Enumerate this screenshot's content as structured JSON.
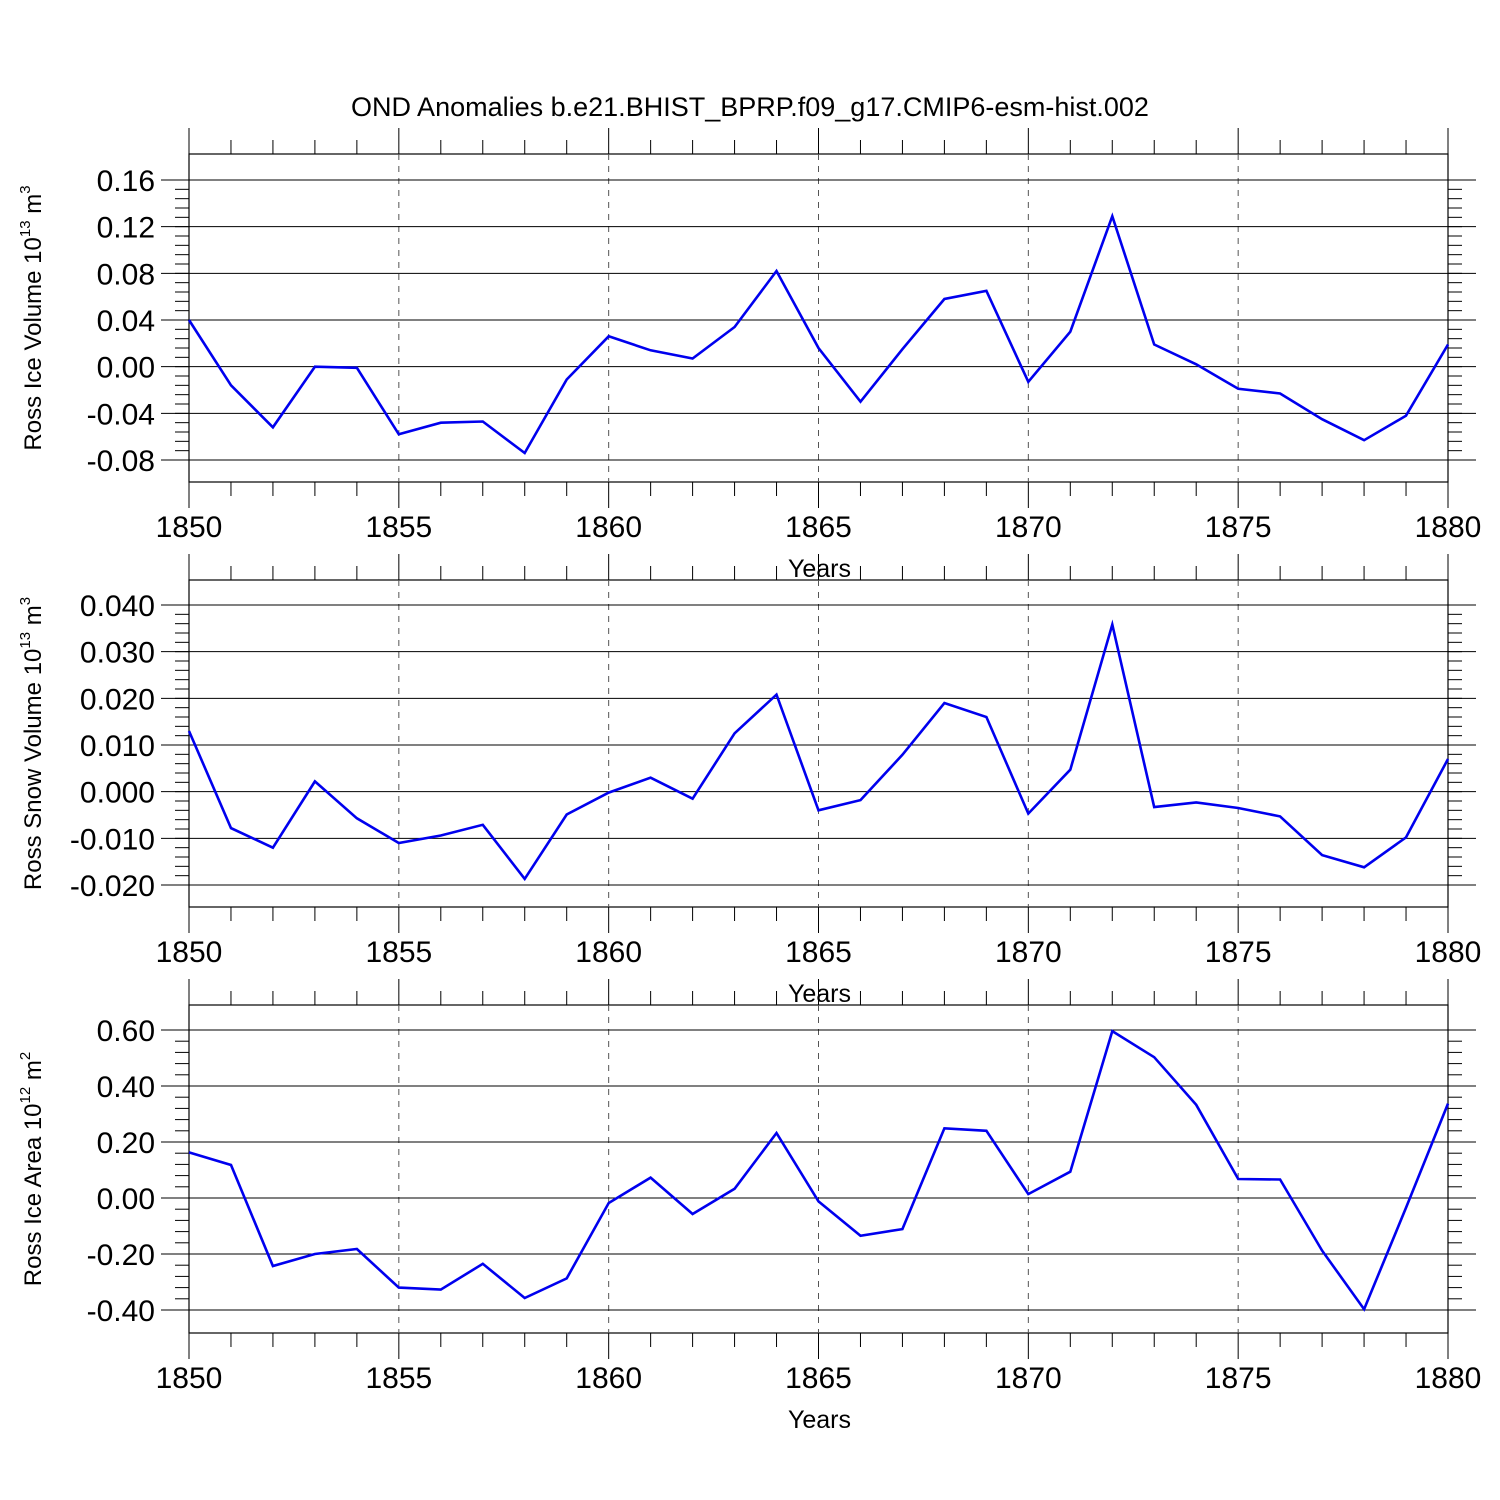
{
  "title": "OND Anomalies b.e21.BHIST_BPRP.f09_g17.CMIP6-esm-hist.002",
  "colors": {
    "line": "#0000ee",
    "axis": "#000000",
    "grid": "#555555"
  },
  "chart_data": [
    {
      "type": "line",
      "ylabel": "Ross Ice Volume 10",
      "ylabel_exp": "13",
      "ylabel_unit": " m",
      "ylabel_unit_exp": "3",
      "xlabel": "Years",
      "xlim": [
        1850,
        1880
      ],
      "ylim": [
        -0.08,
        0.16
      ],
      "yticks": [
        "0.16",
        "0.12",
        "0.08",
        "0.04",
        "0.00",
        "-0.04",
        "-0.08"
      ],
      "xticks": [
        "1850",
        "1855",
        "1860",
        "1865",
        "1870",
        "1875",
        "1880"
      ],
      "x": [
        1850,
        1851,
        1852,
        1853,
        1854,
        1855,
        1856,
        1857,
        1858,
        1859,
        1860,
        1861,
        1862,
        1863,
        1864,
        1865,
        1866,
        1867,
        1868,
        1869,
        1870,
        1871,
        1872,
        1873,
        1874,
        1875,
        1876,
        1877,
        1878,
        1879,
        1880
      ],
      "values": [
        0.04,
        -0.016,
        -0.052,
        0.0,
        -0.001,
        -0.058,
        -0.048,
        -0.047,
        -0.074,
        -0.011,
        0.026,
        0.014,
        0.007,
        0.034,
        0.082,
        0.016,
        -0.03,
        0.015,
        0.058,
        0.065,
        -0.013,
        0.03,
        0.129,
        0.019,
        0.002,
        -0.019,
        -0.023,
        -0.045,
        -0.063,
        -0.042,
        0.019
      ]
    },
    {
      "type": "line",
      "ylabel": "Ross Snow Volume 10",
      "ylabel_exp": "13",
      "ylabel_unit": " m",
      "ylabel_unit_exp": "3",
      "xlabel": "Years",
      "xlim": [
        1850,
        1880
      ],
      "ylim": [
        -0.02,
        0.04
      ],
      "yticks": [
        "0.040",
        "0.030",
        "0.020",
        "0.010",
        "0.000",
        "-0.010",
        "-0.020"
      ],
      "xticks": [
        "1850",
        "1855",
        "1860",
        "1865",
        "1870",
        "1875",
        "1880"
      ],
      "x": [
        1850,
        1851,
        1852,
        1853,
        1854,
        1855,
        1856,
        1857,
        1858,
        1859,
        1860,
        1861,
        1862,
        1863,
        1864,
        1865,
        1866,
        1867,
        1868,
        1869,
        1870,
        1871,
        1872,
        1873,
        1874,
        1875,
        1876,
        1877,
        1878,
        1879,
        1880
      ],
      "values": [
        0.013,
        -0.0078,
        -0.012,
        0.0022,
        -0.0057,
        -0.011,
        -0.0094,
        -0.0071,
        -0.0187,
        -0.0049,
        -0.0002,
        0.003,
        -0.0015,
        0.0125,
        0.0208,
        -0.004,
        -0.0018,
        0.0079,
        0.019,
        0.016,
        -0.0047,
        0.0047,
        0.0358,
        -0.0033,
        -0.0023,
        -0.0035,
        -0.0053,
        -0.0136,
        -0.0162,
        -0.0098,
        0.007
      ]
    },
    {
      "type": "line",
      "ylabel": "Ross Ice Area 10",
      "ylabel_exp": "12",
      "ylabel_unit": " m",
      "ylabel_unit_exp": "2",
      "xlabel": "Years",
      "xlim": [
        1850,
        1880
      ],
      "ylim": [
        -0.4,
        0.6
      ],
      "yticks": [
        "0.60",
        "0.40",
        "0.20",
        "0.00",
        "-0.20",
        "-0.40"
      ],
      "xticks": [
        "1850",
        "1855",
        "1860",
        "1865",
        "1870",
        "1875",
        "1880"
      ],
      "x": [
        1850,
        1851,
        1852,
        1853,
        1854,
        1855,
        1856,
        1857,
        1858,
        1859,
        1860,
        1861,
        1862,
        1863,
        1864,
        1865,
        1866,
        1867,
        1868,
        1869,
        1870,
        1871,
        1872,
        1873,
        1874,
        1875,
        1876,
        1877,
        1878,
        1879,
        1880
      ],
      "values": [
        0.163,
        0.118,
        -0.243,
        -0.2,
        -0.182,
        -0.32,
        -0.327,
        -0.235,
        -0.357,
        -0.287,
        -0.018,
        0.073,
        -0.057,
        0.033,
        0.232,
        -0.012,
        -0.135,
        -0.111,
        0.249,
        0.24,
        0.014,
        0.094,
        0.596,
        0.503,
        0.333,
        0.068,
        0.066,
        -0.188,
        -0.397,
        -0.035,
        0.337
      ]
    }
  ]
}
